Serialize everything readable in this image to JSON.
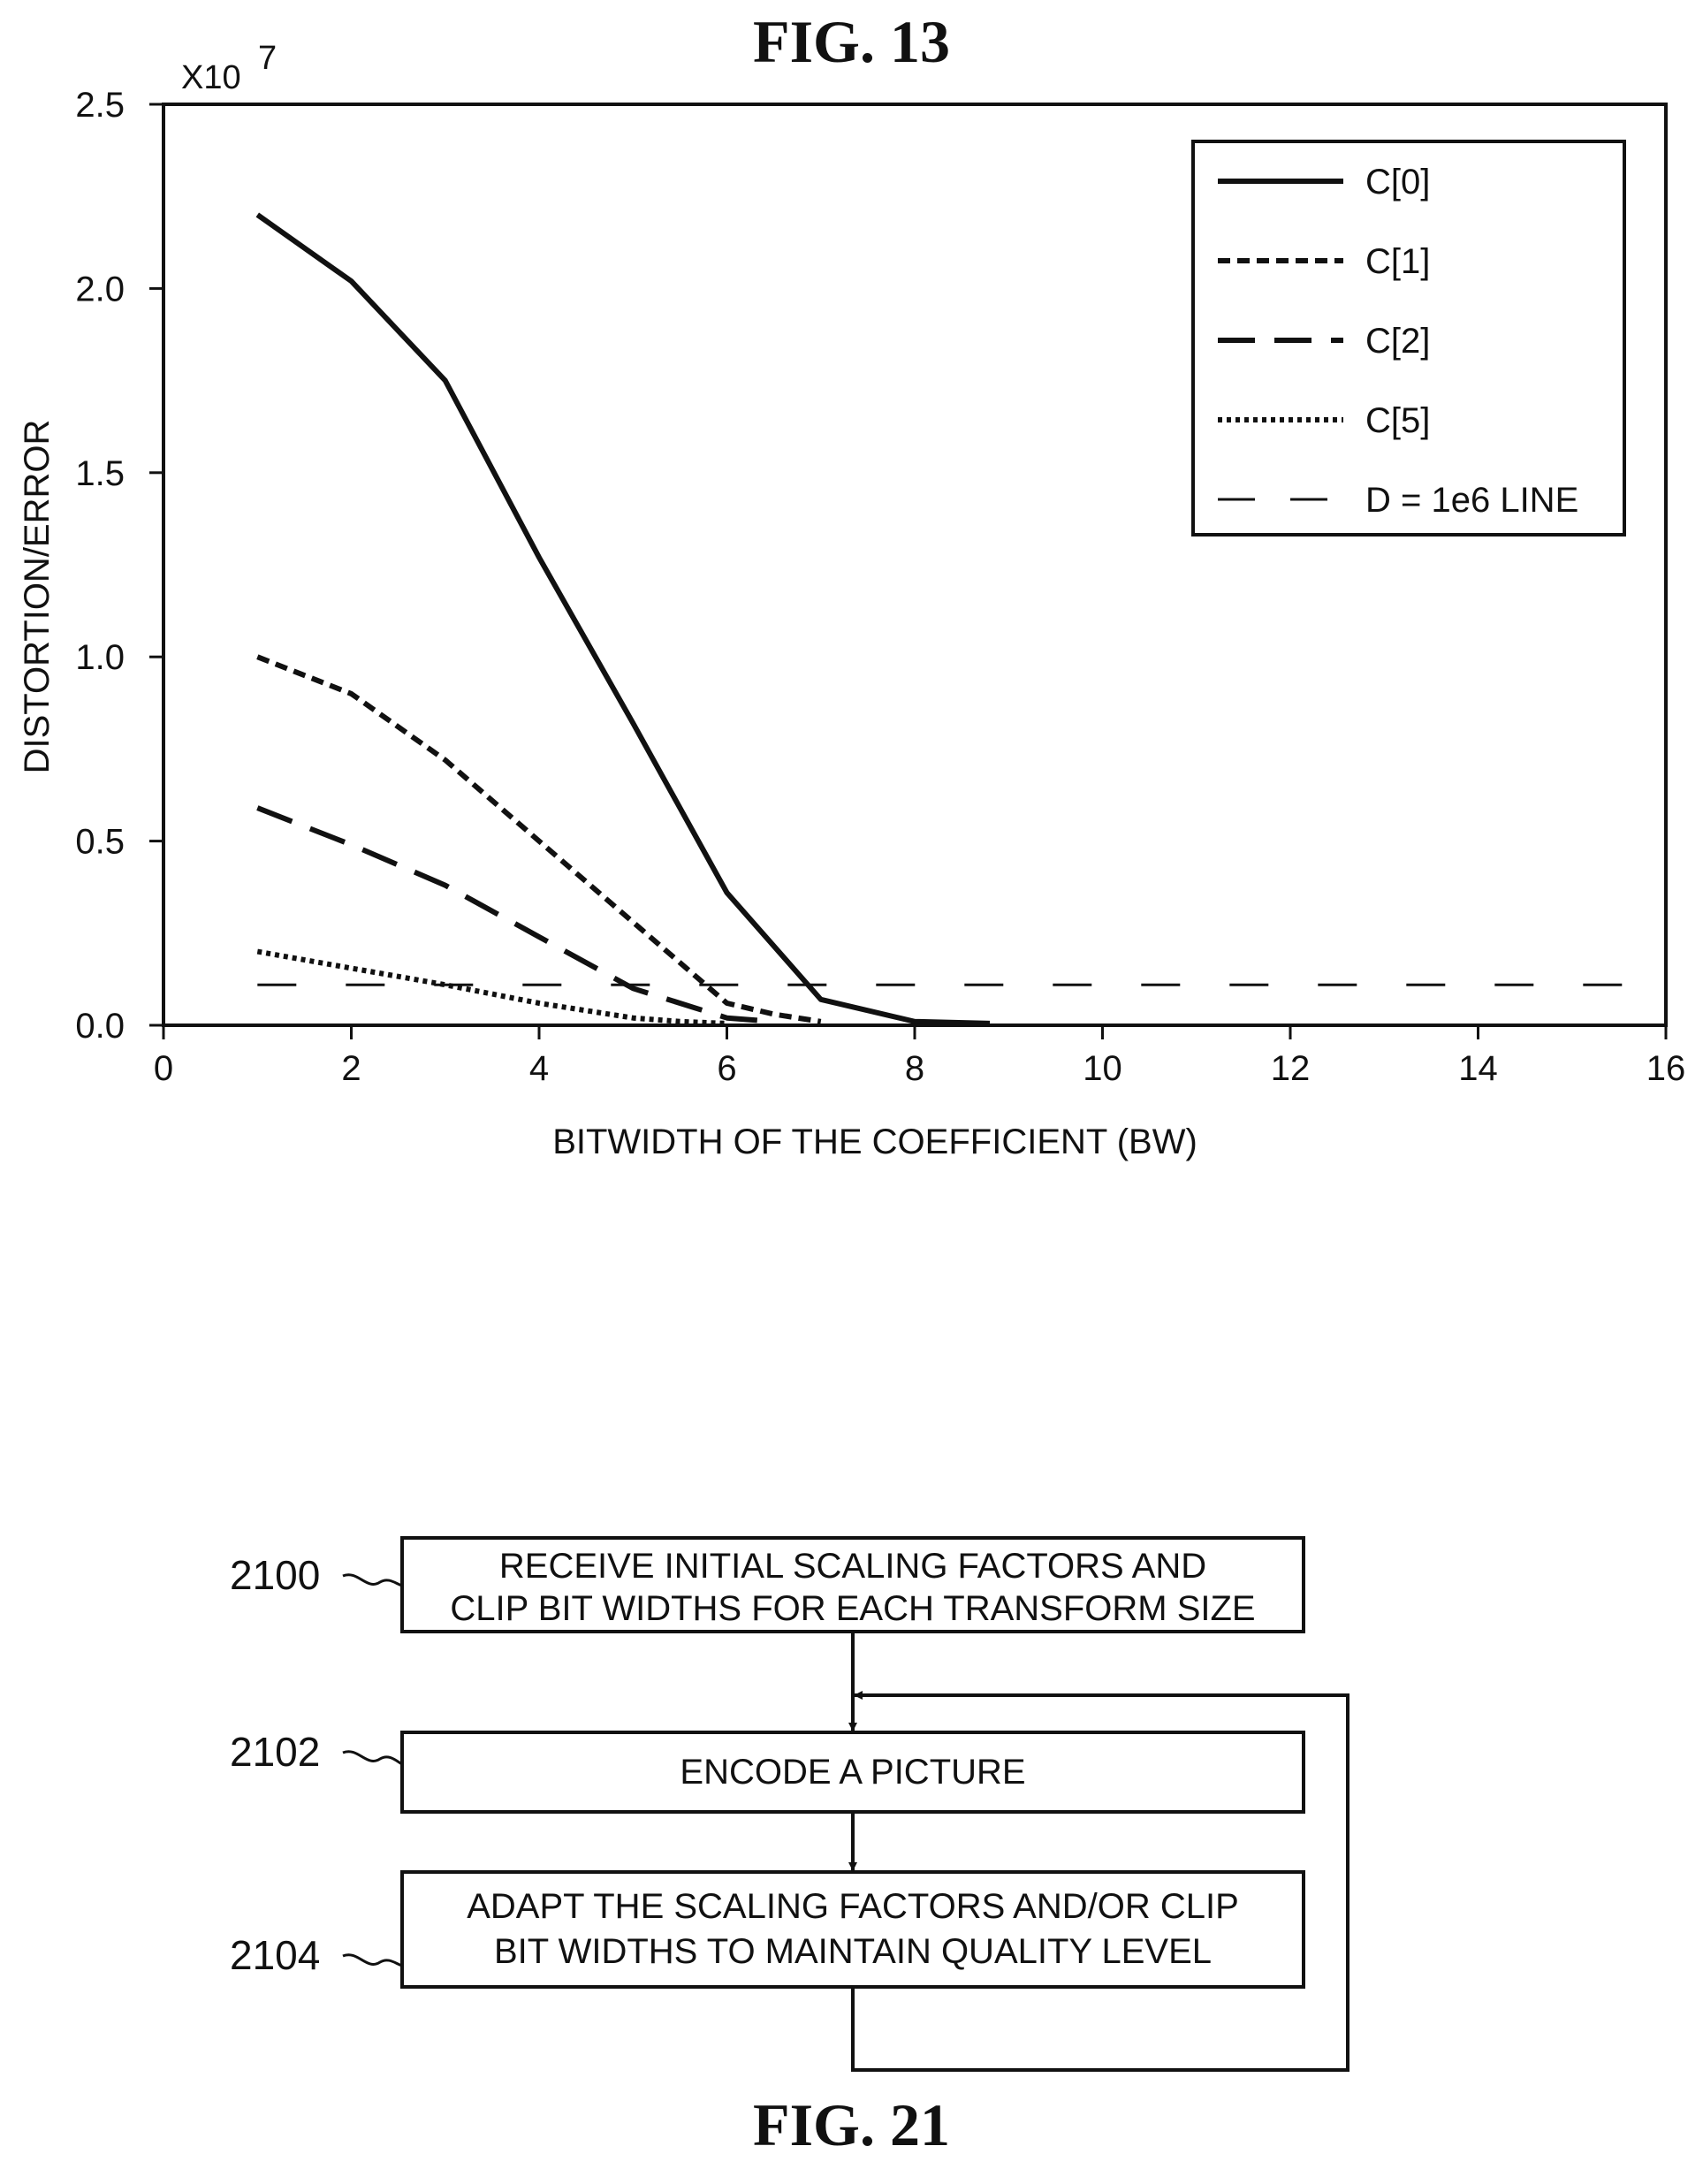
{
  "fig13": {
    "title": "FIG. 13",
    "chart_data": {
      "type": "line",
      "xlabel": "BITWIDTH OF THE COEFFICIENT (BW)",
      "ylabel": "DISTORTION/ERROR",
      "y_multiplier_label": "X10",
      "y_multiplier_exponent": "7",
      "xlim": [
        0,
        16
      ],
      "ylim": [
        0,
        2.5
      ],
      "x_ticks": [
        0,
        2,
        4,
        6,
        8,
        10,
        12,
        14,
        16
      ],
      "x_tick_labels": [
        "0",
        "2",
        "4",
        "6",
        "8",
        "10",
        "12",
        "14",
        "16"
      ],
      "y_ticks": [
        0,
        0.5,
        1.0,
        1.5,
        2.0,
        2.5
      ],
      "y_tick_labels": [
        "0.0",
        "0.5",
        "1.0",
        "1.5",
        "2.0",
        "2.5"
      ],
      "legend_position": "top-right",
      "grid": false,
      "series": [
        {
          "name": "C[0]",
          "style": "solid",
          "x": [
            1,
            2,
            3,
            4,
            5,
            6,
            7,
            8,
            8.8
          ],
          "y": [
            2.2,
            2.02,
            1.75,
            1.27,
            0.82,
            0.36,
            0.07,
            0.01,
            0.005
          ]
        },
        {
          "name": "C[1]",
          "style": "short-dash",
          "x": [
            1,
            2,
            3,
            4,
            5,
            6,
            6.5,
            7
          ],
          "y": [
            1.0,
            0.9,
            0.72,
            0.5,
            0.28,
            0.06,
            0.03,
            0.01
          ]
        },
        {
          "name": "C[2]",
          "style": "long-dash",
          "x": [
            1,
            2,
            3,
            4,
            5,
            6,
            6.5
          ],
          "y": [
            0.59,
            0.49,
            0.38,
            0.24,
            0.1,
            0.02,
            0.01
          ]
        },
        {
          "name": "C[5]",
          "style": "dotted",
          "x": [
            1,
            2,
            3,
            4,
            5,
            5.5,
            6
          ],
          "y": [
            0.2,
            0.155,
            0.11,
            0.06,
            0.02,
            0.01,
            0.005
          ]
        },
        {
          "name": "D = 1e6 LINE",
          "style": "wide-dash",
          "x": [
            1,
            16
          ],
          "y": [
            0.11,
            0.11
          ]
        }
      ]
    }
  },
  "fig21": {
    "title": "FIG. 21",
    "steps": [
      {
        "ref": "2100",
        "lines": [
          "RECEIVE INITIAL SCALING FACTORS AND",
          "CLIP BIT WIDTHS FOR EACH TRANSFORM SIZE"
        ]
      },
      {
        "ref": "2102",
        "lines": [
          "ENCODE A PICTURE"
        ]
      },
      {
        "ref": "2104",
        "lines": [
          "ADAPT THE SCALING FACTORS AND/OR CLIP",
          "BIT WIDTHS TO MAINTAIN QUALITY LEVEL"
        ]
      }
    ]
  }
}
